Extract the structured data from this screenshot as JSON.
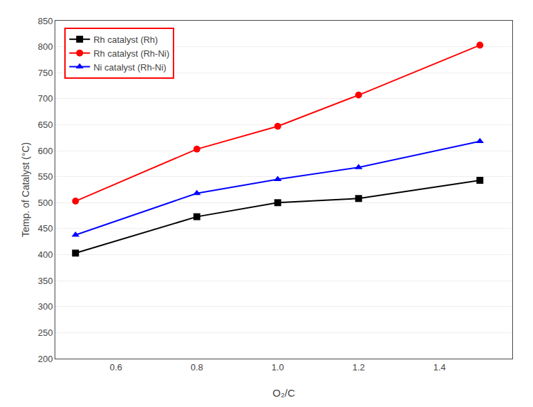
{
  "chart_data": {
    "type": "line",
    "x": [
      0.5,
      0.8,
      1.0,
      1.2,
      1.5
    ],
    "series": [
      {
        "name": "Rh catalyst (Rh)",
        "color": "#000000",
        "marker": "square",
        "values": [
          403,
          473,
          500,
          508,
          543
        ]
      },
      {
        "name": "Rh catalyst (Rh-Ni)",
        "color": "#ff0000",
        "marker": "circle",
        "values": [
          503,
          603,
          647,
          707,
          803
        ]
      },
      {
        "name": "Ni catalyst (Rh-Ni)",
        "color": "#0000ff",
        "marker": "triangle-up",
        "values": [
          438,
          518,
          545,
          568,
          618
        ]
      }
    ],
    "x_label": "O₂/C",
    "y_label": "Temp. of Catalyst (°C)",
    "xlim": [
      0.45,
      1.58
    ],
    "ylim": [
      200,
      850
    ],
    "xticks": [
      0.6,
      0.8,
      {
        "value": 1.0,
        "label": "1.0"
      },
      1.2,
      1.4
    ],
    "yticks": [
      200,
      250,
      300,
      350,
      400,
      450,
      500,
      550,
      600,
      650,
      700,
      750,
      800,
      850
    ],
    "grid": "y",
    "legend": "upper left"
  }
}
